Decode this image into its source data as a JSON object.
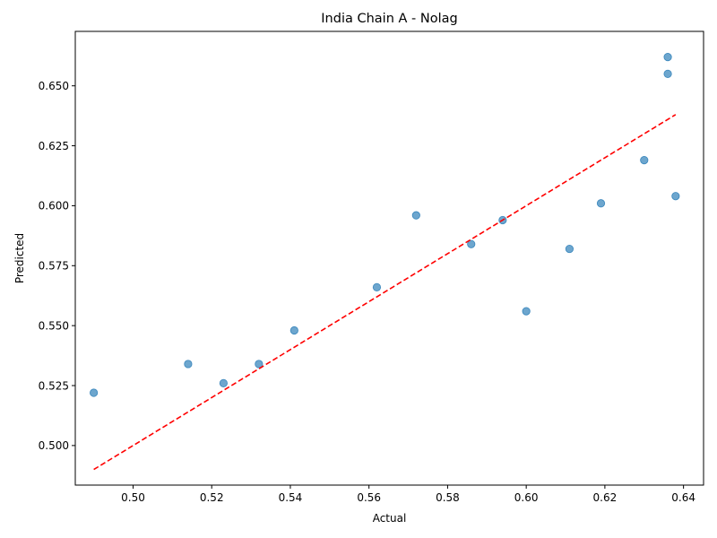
{
  "chart_data": {
    "type": "scatter",
    "title": "India Chain A - Nolag",
    "xlabel": "Actual",
    "ylabel": "Predicted",
    "xlim": [
      0.4853,
      0.6451
    ],
    "ylim": [
      0.4835,
      0.6727
    ],
    "xticks": [
      0.5,
      0.52,
      0.54,
      0.56,
      0.58,
      0.6,
      0.62,
      0.64
    ],
    "yticks": [
      0.5,
      0.525,
      0.55,
      0.575,
      0.6,
      0.625,
      0.65
    ],
    "xtick_labels": [
      "0.50",
      "0.52",
      "0.54",
      "0.56",
      "0.58",
      "0.60",
      "0.62",
      "0.64"
    ],
    "ytick_labels": [
      "0.500",
      "0.525",
      "0.550",
      "0.575",
      "0.600",
      "0.625",
      "0.650"
    ],
    "grid": false,
    "point_color": "#1f77b4",
    "line_color": "#ff0000",
    "points": [
      {
        "x": 0.49,
        "y": 0.522
      },
      {
        "x": 0.514,
        "y": 0.534
      },
      {
        "x": 0.523,
        "y": 0.526
      },
      {
        "x": 0.532,
        "y": 0.534
      },
      {
        "x": 0.541,
        "y": 0.548
      },
      {
        "x": 0.562,
        "y": 0.566
      },
      {
        "x": 0.572,
        "y": 0.596
      },
      {
        "x": 0.586,
        "y": 0.584
      },
      {
        "x": 0.594,
        "y": 0.594
      },
      {
        "x": 0.6,
        "y": 0.556
      },
      {
        "x": 0.611,
        "y": 0.582
      },
      {
        "x": 0.619,
        "y": 0.601
      },
      {
        "x": 0.63,
        "y": 0.619
      },
      {
        "x": 0.636,
        "y": 0.655
      },
      {
        "x": 0.636,
        "y": 0.662
      },
      {
        "x": 0.638,
        "y": 0.604
      }
    ],
    "reference_line": {
      "style": "dashed",
      "from": [
        0.49,
        0.49
      ],
      "to": [
        0.638,
        0.638
      ]
    }
  }
}
